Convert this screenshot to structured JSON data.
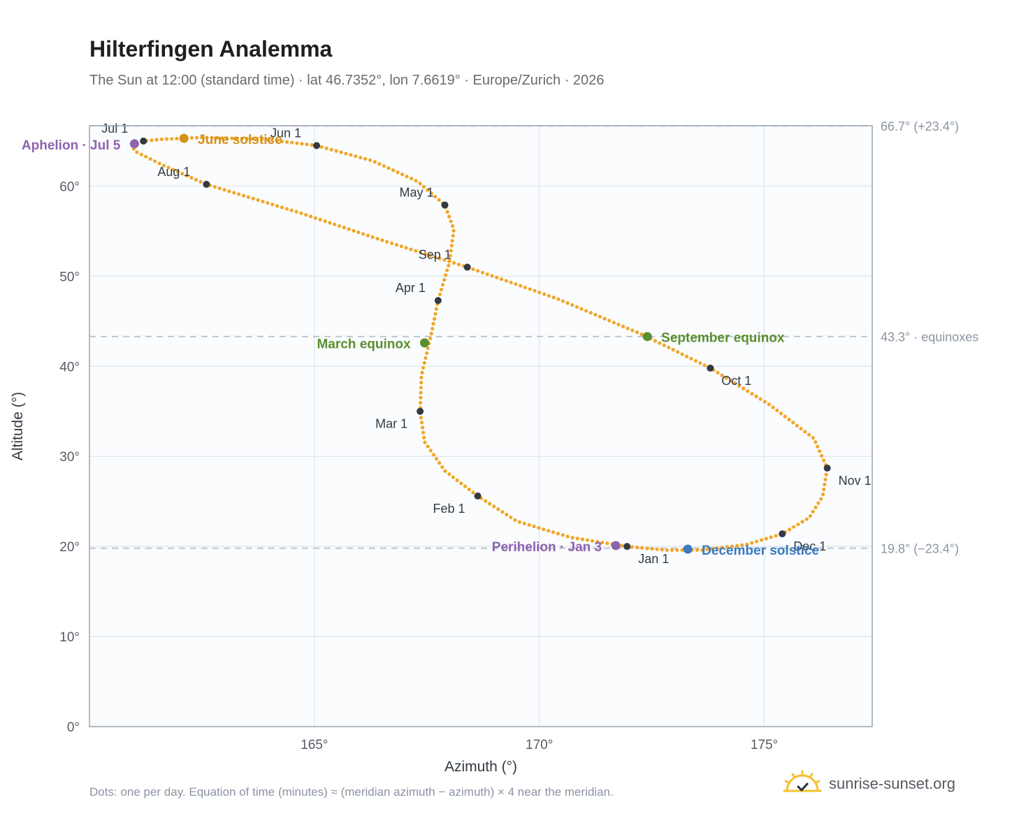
{
  "header": {
    "title": "Hilterfingen Analemma",
    "subtitle": "The Sun at 12:00 (standard time) · lat 46.7352°, lon 7.6619° · Europe/Zurich · 2026"
  },
  "footer": {
    "note": "Dots: one per day. Equation of time (minutes) ≈ (meridian azimuth − azimuth) × 4 near the meridian.",
    "brand": "sunrise-sunset.org"
  },
  "chart_data": {
    "type": "scatter",
    "xlabel": "Azimuth (°)",
    "ylabel": "Altitude (°)",
    "xlim": [
      160.0,
      177.4
    ],
    "ylim": [
      0,
      66.7
    ],
    "x_ticks": [
      165,
      170,
      175
    ],
    "x_tick_labels": [
      "165°",
      "170°",
      "175°"
    ],
    "y_ticks": [
      0,
      10,
      20,
      30,
      40,
      50,
      60
    ],
    "y_tick_labels": [
      "0°",
      "10°",
      "20°",
      "30°",
      "40°",
      "50°",
      "60°"
    ],
    "grid": true,
    "colors": {
      "path": "#f2a627",
      "month_marker": "#333a44",
      "solstice_june": "#d4921a",
      "solstice_december": "#3a7abf",
      "equinox": "#5a8f2e",
      "apsis": "#8e63b0",
      "reference_line": "#b8c2cc",
      "plot_background": "#fafcfe",
      "grid": "#e4e9ee",
      "frame": "#9aa6b2"
    },
    "reference_lines": [
      {
        "y": 66.7,
        "label": "66.7° (+23.4°)"
      },
      {
        "y": 43.3,
        "label": "43.3° · equinoxes"
      },
      {
        "y": 19.8,
        "label": "19.8° (−23.4°)"
      }
    ],
    "months": [
      {
        "label": "Jan 1",
        "x": 171.95,
        "y": 20.0
      },
      {
        "label": "Feb 1",
        "x": 168.63,
        "y": 25.6
      },
      {
        "label": "Mar 1",
        "x": 167.35,
        "y": 35.0
      },
      {
        "label": "Apr 1",
        "x": 167.75,
        "y": 47.3
      },
      {
        "label": "May 1",
        "x": 167.9,
        "y": 57.9
      },
      {
        "label": "Jun 1",
        "x": 165.05,
        "y": 64.5
      },
      {
        "label": "Jul 1",
        "x": 161.2,
        "y": 65.0
      },
      {
        "label": "Aug 1",
        "x": 162.6,
        "y": 60.2
      },
      {
        "label": "Sep 1",
        "x": 168.4,
        "y": 51.0
      },
      {
        "label": "Oct 1",
        "x": 173.8,
        "y": 39.8
      },
      {
        "label": "Nov 1",
        "x": 176.4,
        "y": 28.7
      },
      {
        "label": "Dec 1",
        "x": 175.4,
        "y": 21.4
      }
    ],
    "events": [
      {
        "label": "June solstice",
        "x": 162.1,
        "y": 65.3,
        "color_key": "solstice_june"
      },
      {
        "label": "December solstice",
        "x": 173.3,
        "y": 19.7,
        "color_key": "solstice_december"
      },
      {
        "label": "March equinox",
        "x": 167.45,
        "y": 42.6,
        "color_key": "equinox"
      },
      {
        "label": "September equinox",
        "x": 172.4,
        "y": 43.3,
        "color_key": "equinox"
      },
      {
        "label": "Aphelion · Jul 5",
        "x": 161.0,
        "y": 64.7,
        "color_key": "apsis"
      },
      {
        "label": "Perihelion · Jan 3",
        "x": 171.7,
        "y": 20.1,
        "color_key": "apsis"
      }
    ],
    "path_points": [
      [
        171.95,
        20.0
      ],
      [
        170.7,
        21.0
      ],
      [
        169.5,
        22.8
      ],
      [
        168.63,
        25.6
      ],
      [
        167.9,
        28.4
      ],
      [
        167.45,
        31.6
      ],
      [
        167.35,
        35.0
      ],
      [
        167.38,
        39.0
      ],
      [
        167.6,
        43.6
      ],
      [
        167.75,
        47.3
      ],
      [
        168.0,
        51.5
      ],
      [
        168.1,
        55.2
      ],
      [
        167.9,
        57.9
      ],
      [
        167.3,
        60.5
      ],
      [
        166.3,
        62.8
      ],
      [
        165.05,
        64.5
      ],
      [
        163.9,
        65.2
      ],
      [
        162.5,
        65.4
      ],
      [
        161.6,
        65.2
      ],
      [
        161.2,
        65.0
      ],
      [
        160.95,
        64.7
      ],
      [
        161.0,
        63.9
      ],
      [
        161.6,
        62.4
      ],
      [
        162.6,
        60.2
      ],
      [
        164.7,
        57.0
      ],
      [
        166.5,
        54.0
      ],
      [
        168.4,
        51.0
      ],
      [
        170.4,
        47.5
      ],
      [
        172.3,
        43.5
      ],
      [
        173.8,
        39.8
      ],
      [
        175.1,
        35.8
      ],
      [
        176.1,
        32.0
      ],
      [
        176.4,
        28.7
      ],
      [
        176.3,
        25.6
      ],
      [
        176.0,
        23.2
      ],
      [
        175.4,
        21.4
      ],
      [
        174.6,
        20.2
      ],
      [
        173.6,
        19.6
      ],
      [
        172.8,
        19.6
      ],
      [
        171.95,
        20.0
      ]
    ]
  }
}
